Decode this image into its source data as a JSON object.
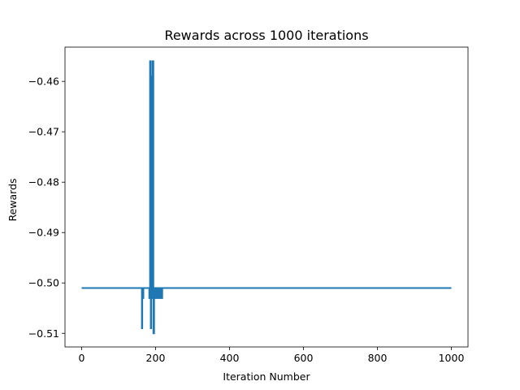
{
  "chart_data": {
    "type": "line",
    "title": "Rewards across 1000 iterations",
    "xlabel": "Iteration Number",
    "ylabel": "Rewards",
    "xlim": [
      -45,
      1045
    ],
    "ylim": [
      -0.5127,
      -0.4532
    ],
    "xticks": [
      0,
      200,
      400,
      600,
      800,
      1000
    ],
    "yticks": [
      -0.51,
      -0.5,
      -0.49,
      -0.48,
      -0.47,
      -0.46
    ],
    "xtick_labels": [
      "0",
      "200",
      "400",
      "600",
      "800",
      "1000"
    ],
    "ytick_labels": [
      "−0.51",
      "−0.50",
      "−0.49",
      "−0.48",
      "−0.47",
      "−0.46"
    ],
    "grid": false,
    "color": "#1f77b4",
    "series": [
      {
        "x": [
          0,
          163,
          163,
          164,
          164,
          165,
          165,
          167,
          167,
          183,
          183,
          185,
          185,
          187,
          187,
          188,
          188,
          190,
          190,
          192,
          192,
          194,
          194,
          196,
          196,
          198,
          198,
          200,
          200,
          202,
          202,
          206,
          206,
          210,
          210,
          214,
          214,
          218,
          218,
          222,
          222,
          1000
        ],
        "y": [
          -0.501,
          -0.501,
          -0.509,
          -0.509,
          -0.501,
          -0.501,
          -0.503,
          -0.503,
          -0.501,
          -0.501,
          -0.503,
          -0.503,
          -0.456,
          -0.456,
          -0.509,
          -0.509,
          -0.459,
          -0.459,
          -0.503,
          -0.503,
          -0.456,
          -0.456,
          -0.51,
          -0.51,
          -0.503,
          -0.503,
          -0.501,
          -0.501,
          -0.503,
          -0.503,
          -0.501,
          -0.501,
          -0.503,
          -0.503,
          -0.501,
          -0.501,
          -0.503,
          -0.503,
          -0.501,
          -0.501,
          -0.501,
          -0.501
        ]
      }
    ]
  }
}
